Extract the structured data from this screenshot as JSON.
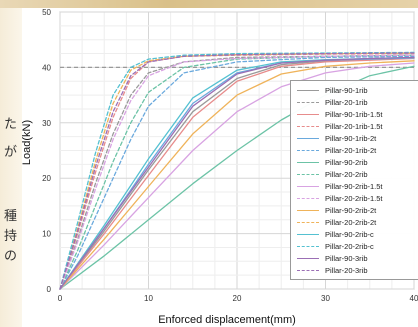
{
  "page": {
    "background_color": "#ffffff",
    "left_fragment_chars": [
      "た",
      "が",
      "種",
      "持",
      "の"
    ]
  },
  "chart_data": {
    "type": "line",
    "title": "",
    "xlabel": "Enforced displacement(mm)",
    "ylabel": "Load(kN)",
    "xlim": [
      0,
      40
    ],
    "ylim": [
      0,
      50
    ],
    "x_ticks": [
      0,
      10,
      20,
      30,
      40
    ],
    "y_ticks": [
      0,
      10,
      20,
      30,
      40,
      50
    ],
    "x_tick_labels": [
      "0",
      "10",
      "20",
      "30",
      "40"
    ],
    "y_tick_labels": [
      "0",
      "10",
      "20",
      "30",
      "40",
      "50"
    ],
    "grid": true,
    "legend_position": "right",
    "reference_line": {
      "y": 40,
      "style": "dashed",
      "color": "#999999"
    },
    "series": [
      {
        "name": "Pillar-90-1rib",
        "color": "#9a9a9a",
        "dash": "solid",
        "x": [
          0,
          5,
          10,
          15,
          20,
          25,
          30,
          35,
          40
        ],
        "y": [
          0,
          10.5,
          21.5,
          32,
          38,
          40.5,
          41.2,
          41.5,
          41.7
        ]
      },
      {
        "name": "Pillar-20-1rib",
        "color": "#9a9a9a",
        "dash": "dashed",
        "x": [
          0,
          2,
          4,
          6,
          8,
          10,
          14,
          20,
          30,
          40
        ],
        "y": [
          0,
          9,
          19,
          28,
          35,
          39,
          41,
          41.8,
          42,
          42.2
        ]
      },
      {
        "name": "Pillar-90-1rib-1.5t",
        "color": "#e78c8c",
        "dash": "solid",
        "x": [
          0,
          5,
          10,
          15,
          20,
          25,
          30,
          35,
          40
        ],
        "y": [
          0,
          10,
          20.5,
          31,
          37.5,
          40.2,
          41,
          41.3,
          41.6
        ]
      },
      {
        "name": "Pillar-20-1rib-1.5t",
        "color": "#e78c8c",
        "dash": "dashed",
        "x": [
          0,
          2,
          4,
          6,
          8,
          10,
          14,
          20,
          30,
          40
        ],
        "y": [
          0,
          10,
          21,
          31,
          38,
          41,
          42,
          42.2,
          42.4,
          42.5
        ]
      },
      {
        "name": "Pillar-90-1rib-2t",
        "color": "#6aa9dd",
        "dash": "solid",
        "x": [
          0,
          5,
          10,
          15,
          20,
          25,
          30,
          35,
          40
        ],
        "y": [
          0,
          11,
          22.5,
          33.5,
          39,
          40.8,
          41.3,
          41.5,
          41.7
        ]
      },
      {
        "name": "Pillar-20-1rib-2t",
        "color": "#6aa9dd",
        "dash": "dashed",
        "x": [
          0,
          2,
          4,
          6,
          8,
          10,
          14,
          20,
          30,
          40
        ],
        "y": [
          0,
          6,
          13,
          20,
          27,
          33,
          39,
          41,
          41.8,
          42
        ]
      },
      {
        "name": "Pillar-90-2rib",
        "color": "#6cc3a6",
        "dash": "solid",
        "x": [
          0,
          5,
          10,
          15,
          20,
          25,
          30,
          35,
          40
        ],
        "y": [
          0,
          6,
          12.5,
          19,
          25,
          30.5,
          35,
          38.5,
          40.2
        ]
      },
      {
        "name": "Pillar-20-2rib",
        "color": "#6cc3a6",
        "dash": "dashed",
        "x": [
          0,
          2,
          4,
          6,
          8,
          10,
          14,
          20,
          30,
          40
        ],
        "y": [
          0,
          7,
          15,
          23,
          30,
          35.5,
          40,
          41.5,
          42,
          42.2
        ]
      },
      {
        "name": "Pillar-90-2rib-1.5t",
        "color": "#d8a3e2",
        "dash": "solid",
        "x": [
          0,
          5,
          10,
          15,
          20,
          25,
          30,
          35,
          40
        ],
        "y": [
          0,
          8,
          16.5,
          25,
          32,
          36.5,
          39,
          40.2,
          40.8
        ]
      },
      {
        "name": "Pillar-20-2rib-1.5t",
        "color": "#d8a3e2",
        "dash": "dashed",
        "x": [
          0,
          2,
          4,
          6,
          8,
          10,
          14,
          20,
          30,
          40
        ],
        "y": [
          0,
          8.5,
          18,
          27,
          34,
          38.5,
          41,
          41.6,
          42,
          42.2
        ]
      },
      {
        "name": "Pillar-90-2rib-2t",
        "color": "#efb35a",
        "dash": "solid",
        "x": [
          0,
          5,
          10,
          15,
          20,
          25,
          30,
          35,
          40
        ],
        "y": [
          0,
          9,
          18.5,
          28,
          35,
          38.8,
          40.2,
          40.8,
          41.2
        ]
      },
      {
        "name": "Pillar-20-2rib-2t",
        "color": "#efb35a",
        "dash": "dashed",
        "x": [
          0,
          2,
          4,
          6,
          8,
          10,
          14,
          20,
          30,
          40
        ],
        "y": [
          0,
          11,
          23,
          33.5,
          39.5,
          41.2,
          42,
          42.3,
          42.5,
          42.6
        ]
      },
      {
        "name": "Pillar-90-2rib-c",
        "color": "#54c1d1",
        "dash": "solid",
        "x": [
          0,
          5,
          10,
          15,
          20,
          25,
          30,
          35,
          40
        ],
        "y": [
          0,
          11.5,
          23.5,
          34.5,
          39.5,
          41,
          41.4,
          41.6,
          41.8
        ]
      },
      {
        "name": "Pillar-20-2rib-c",
        "color": "#54c1d1",
        "dash": "dashed",
        "x": [
          0,
          2,
          4,
          6,
          8,
          10,
          14,
          20,
          30,
          40
        ],
        "y": [
          0,
          12,
          24.5,
          35,
          40,
          41.5,
          42.2,
          42.5,
          42.6,
          42.7
        ]
      },
      {
        "name": "Pillar-90-3rib",
        "color": "#9b6fb5",
        "dash": "solid",
        "x": [
          0,
          5,
          10,
          15,
          20,
          25,
          30,
          35,
          40
        ],
        "y": [
          0,
          11,
          22,
          33,
          38.8,
          40.8,
          41.3,
          41.6,
          41.8
        ]
      },
      {
        "name": "Pillar-20-3rib",
        "color": "#9b6fb5",
        "dash": "dashed",
        "x": [
          0,
          2,
          4,
          6,
          8,
          10,
          14,
          20,
          30,
          40
        ],
        "y": [
          0,
          10.5,
          22,
          32,
          38.5,
          41,
          42,
          42.3,
          42.5,
          42.6
        ]
      }
    ]
  }
}
